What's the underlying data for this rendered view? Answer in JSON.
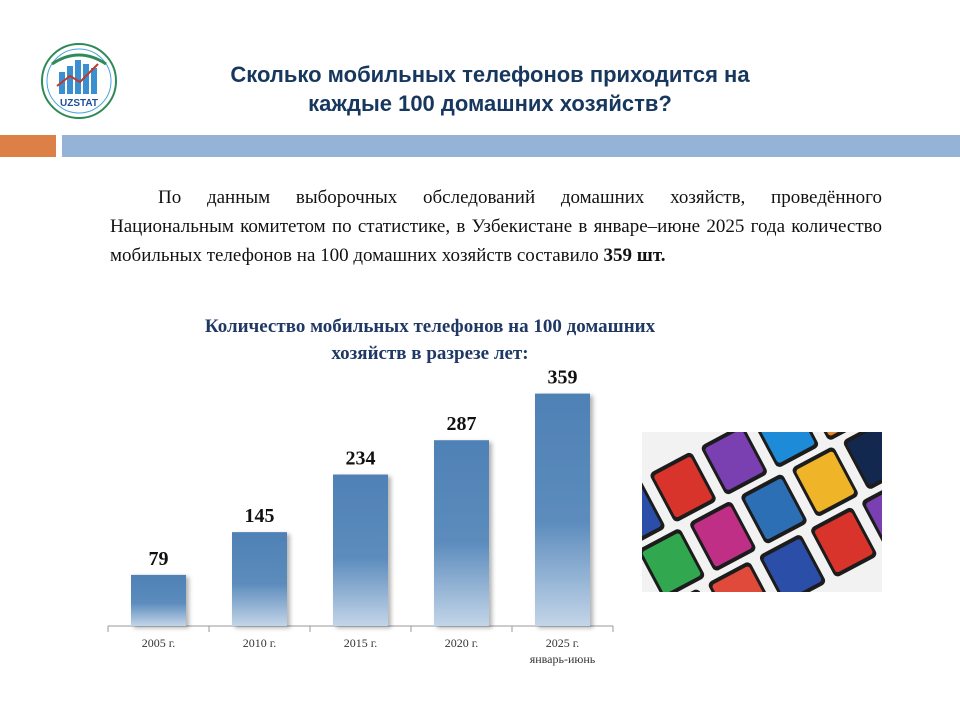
{
  "logo": {
    "text": "UZSTAT"
  },
  "title": {
    "line1": "Сколько мобильных телефонов приходится на",
    "line2": "каждые 100 домашних хозяйств?"
  },
  "paragraph": {
    "text": "По данным выборочных обследований домашних хозяйств, проведённого Национальным комитетом по статистике, в Узбекистане в январе–июне 2025 года количество мобильных телефонов на 100 домашних хозяйств составило ",
    "bold": "359 шт."
  },
  "chart_data": {
    "type": "bar",
    "title": "Количество мобильных телефонов на 100 домашних хозяйств в разрезе лет:",
    "title_line1": "Количество мобильных телефонов на 100 домашних",
    "title_line2": "хозяйств в разрезе лет:",
    "categories": [
      "2005 г.",
      "2010 г.",
      "2015 г.",
      "2020 г.",
      "2025 г. январь-июнь"
    ],
    "category_lines": [
      [
        "2005 г."
      ],
      [
        "2010 г."
      ],
      [
        "2015 г."
      ],
      [
        "2020 г."
      ],
      [
        "2025 г.",
        "январь-июнь"
      ]
    ],
    "values": [
      79,
      145,
      234,
      287,
      359
    ],
    "data_labels": [
      "79",
      "145",
      "234",
      "287",
      "359"
    ],
    "xlabel": "",
    "ylabel": "",
    "ylim": [
      0,
      380
    ],
    "grid": false,
    "legend": "none",
    "bar_color": "#4f81b5"
  },
  "colors": {
    "title": "#17375e",
    "accent_orange": "#dd8047",
    "accent_blue": "#94b3d6",
    "bar": "#4f81b5"
  },
  "image": {
    "icon": "smartphones-photo"
  }
}
